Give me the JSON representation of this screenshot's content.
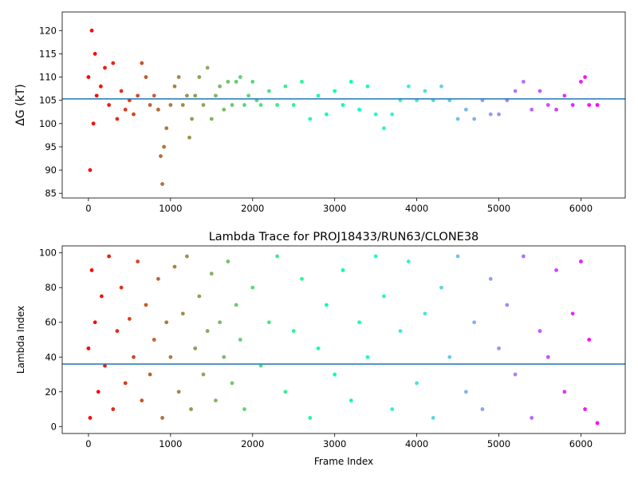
{
  "chart_data": [
    {
      "type": "scatter",
      "title": "",
      "xlabel": "",
      "ylabel": "ΔG (kT)",
      "xlim": [
        -320,
        6540
      ],
      "ylim": [
        84,
        124
      ],
      "xticks": [
        "0",
        "1000",
        "2000",
        "3000",
        "4000",
        "5000",
        "6000"
      ],
      "xtick_values": [
        0,
        1000,
        2000,
        3000,
        4000,
        5000,
        6000
      ],
      "yticks": [
        "85",
        "90",
        "95",
        "100",
        "105",
        "110",
        "115",
        "120"
      ],
      "ytick_values": [
        85,
        90,
        95,
        100,
        105,
        110,
        115,
        120
      ],
      "grid": false,
      "colormap": "rainbow (red at frame 0 to violet at last frame)",
      "hline": {
        "y": 105.3,
        "color": "#1f77b4"
      },
      "series": [
        {
          "x": [
            0,
            20,
            40,
            60,
            80,
            100,
            150,
            200,
            250,
            300,
            350,
            400,
            450,
            500,
            550,
            600,
            650,
            700,
            750,
            800,
            850,
            880,
            900,
            920,
            950,
            1000,
            1050,
            1100,
            1150,
            1200,
            1230,
            1260,
            1300,
            1350,
            1400,
            1450,
            1500,
            1550,
            1600,
            1650,
            1700,
            1750,
            1800,
            1850,
            1900,
            1950,
            2000,
            2050,
            2100,
            2200,
            2300,
            2400,
            2500,
            2600,
            2700,
            2800,
            2900,
            3000,
            3100,
            3200,
            3300,
            3400,
            3500,
            3600,
            3700,
            3800,
            3900,
            4000,
            4100,
            4200,
            4300,
            4400,
            4500,
            4600,
            4700,
            4800,
            4900,
            5000,
            5100,
            5200,
            5300,
            5400,
            5500,
            5600,
            5700,
            5800,
            5900,
            6000,
            6050,
            6100,
            6200
          ],
          "y": [
            110,
            90,
            120,
            100,
            115,
            106,
            108,
            112,
            104,
            113,
            101,
            107,
            103,
            105,
            102,
            106,
            113,
            110,
            104,
            106,
            103,
            93,
            87,
            95,
            99,
            104,
            108,
            110,
            104,
            106,
            97,
            101,
            106,
            110,
            104,
            112,
            101,
            106,
            108,
            103,
            109,
            104,
            109,
            110,
            104,
            106,
            109,
            105,
            104,
            107,
            104,
            108,
            104,
            109,
            101,
            106,
            102,
            107,
            104,
            109,
            103,
            108,
            102,
            99,
            102,
            105,
            108,
            105,
            107,
            105,
            108,
            105,
            101,
            103,
            101,
            105,
            102,
            102,
            105,
            107,
            109,
            103,
            107,
            104,
            103,
            106,
            104,
            109,
            110,
            104,
            104
          ]
        }
      ]
    },
    {
      "type": "scatter",
      "title": "Lambda Trace for PROJ18433/RUN63/CLONE38",
      "xlabel": "Frame Index",
      "ylabel": "Lambda Index",
      "xlim": [
        -320,
        6540
      ],
      "ylim": [
        -4,
        104
      ],
      "xticks": [
        "0",
        "1000",
        "2000",
        "3000",
        "4000",
        "5000",
        "6000"
      ],
      "xtick_values": [
        0,
        1000,
        2000,
        3000,
        4000,
        5000,
        6000
      ],
      "yticks": [
        "0",
        "20",
        "40",
        "60",
        "80",
        "100"
      ],
      "ytick_values": [
        0,
        20,
        40,
        60,
        80,
        100
      ],
      "grid": false,
      "colormap": "rainbow (red at frame 0 to violet at last frame)",
      "hline": {
        "y": 36,
        "color": "#1f77b4"
      },
      "series": [
        {
          "x": [
            0,
            20,
            40,
            80,
            120,
            160,
            200,
            250,
            300,
            350,
            400,
            450,
            500,
            550,
            600,
            650,
            700,
            750,
            800,
            850,
            900,
            950,
            1000,
            1050,
            1100,
            1150,
            1200,
            1250,
            1300,
            1350,
            1400,
            1450,
            1500,
            1550,
            1600,
            1650,
            1700,
            1750,
            1800,
            1850,
            1900,
            2000,
            2100,
            2200,
            2300,
            2400,
            2500,
            2600,
            2700,
            2800,
            2900,
            3000,
            3100,
            3200,
            3300,
            3400,
            3500,
            3600,
            3700,
            3800,
            3900,
            4000,
            4100,
            4200,
            4300,
            4400,
            4500,
            4600,
            4700,
            4800,
            4900,
            5000,
            5100,
            5200,
            5300,
            5400,
            5500,
            5600,
            5700,
            5800,
            5900,
            6000,
            6050,
            6100,
            6200
          ],
          "y": [
            45,
            5,
            90,
            60,
            20,
            75,
            35,
            98,
            10,
            55,
            80,
            25,
            62,
            40,
            95,
            15,
            70,
            30,
            50,
            85,
            5,
            60,
            40,
            92,
            20,
            65,
            98,
            10,
            45,
            75,
            30,
            55,
            88,
            15,
            60,
            40,
            95,
            25,
            70,
            50,
            10,
            80,
            35,
            60,
            98,
            20,
            55,
            85,
            5,
            45,
            70,
            30,
            90,
            15,
            60,
            40,
            98,
            75,
            10,
            55,
            95,
            25,
            65,
            5,
            80,
            40,
            98,
            20,
            60,
            10,
            85,
            45,
            70,
            30,
            98,
            5,
            55,
            40,
            90,
            20,
            65,
            95,
            10,
            50,
            2
          ]
        }
      ]
    }
  ]
}
